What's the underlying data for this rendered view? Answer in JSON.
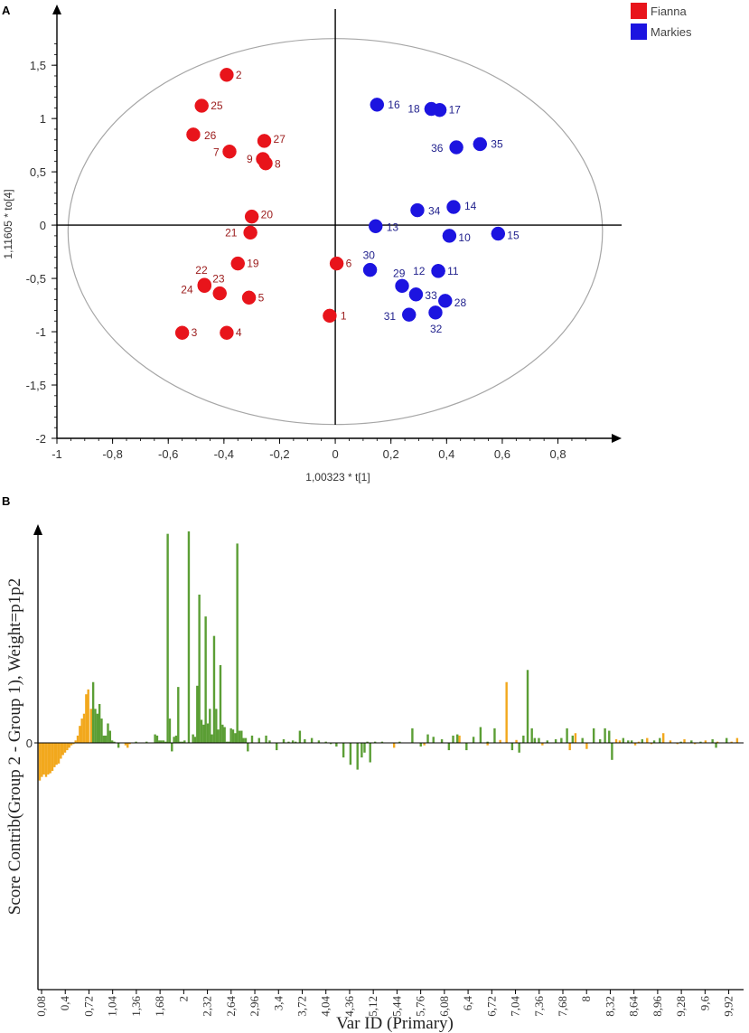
{
  "panels": {
    "a": {
      "label": "A"
    },
    "b": {
      "label": "B"
    }
  },
  "colors": {
    "fianna": "#e8141b",
    "markies": "#1c14e0",
    "fianna_label": "#9b1b1b",
    "markies_label": "#1f1f8c",
    "positive_bar": "#5b9e35",
    "negative_bar": "#f2a81d",
    "axis": "#000000",
    "ellipse": "#a6a6a6"
  },
  "chart_data": [
    {
      "type": "scatter",
      "title": "",
      "xlabel": "1,00323 * t[1]",
      "ylabel": "1,11605 * to[4]",
      "xlim": [
        -1,
        0.98
      ],
      "ylim": [
        -2,
        1.9
      ],
      "x_ticks": [
        {
          "value": -1,
          "label": "-1"
        },
        {
          "value": -0.8,
          "label": "-0,8"
        },
        {
          "value": -0.6,
          "label": "-0,6"
        },
        {
          "value": -0.4,
          "label": "-0,4"
        },
        {
          "value": -0.2,
          "label": "-0,2"
        },
        {
          "value": 0,
          "label": "0"
        },
        {
          "value": 0.2,
          "label": "0,2"
        },
        {
          "value": 0.4,
          "label": "0,4"
        },
        {
          "value": 0.6,
          "label": "0,6"
        },
        {
          "value": 0.8,
          "label": "0,8"
        }
      ],
      "y_ticks": [
        {
          "value": 1.5,
          "label": "1,5"
        },
        {
          "value": 1,
          "label": "1"
        },
        {
          "value": 0.5,
          "label": "0,5"
        },
        {
          "value": 0,
          "label": "0"
        },
        {
          "value": -0.5,
          "label": "-0,5"
        },
        {
          "value": -1,
          "label": "-1"
        },
        {
          "value": -1.5,
          "label": "-1,5"
        },
        {
          "value": -2,
          "label": "-2"
        }
      ],
      "ellipse": {
        "cx": 0,
        "cy": -0.06,
        "rx": 0.96,
        "ry": 1.81
      },
      "legend": {
        "position": "top-right",
        "entries": [
          {
            "name": "Fianna",
            "color": "#e8141b"
          },
          {
            "name": "Markies",
            "color": "#1c14e0"
          }
        ]
      },
      "series": [
        {
          "name": "Fianna",
          "points": [
            {
              "id": "1",
              "x": -0.02,
              "y": -0.85,
              "dx": 12,
              "dy": 4
            },
            {
              "id": "2",
              "x": -0.39,
              "y": 1.41,
              "dx": 10,
              "dy": 4
            },
            {
              "id": "3",
              "x": -0.55,
              "y": -1.01,
              "dx": 10,
              "dy": 4
            },
            {
              "id": "4",
              "x": -0.39,
              "y": -1.01,
              "dx": 10,
              "dy": 4
            },
            {
              "id": "5",
              "x": -0.31,
              "y": -0.68,
              "dx": 10,
              "dy": 4
            },
            {
              "id": "6",
              "x": 0.005,
              "y": -0.36,
              "dx": 10,
              "dy": 4
            },
            {
              "id": "7",
              "x": -0.38,
              "y": 0.69,
              "dx": -18,
              "dy": 5
            },
            {
              "id": "8",
              "x": -0.25,
              "y": 0.58,
              "dx": 10,
              "dy": 5
            },
            {
              "id": "9",
              "x": -0.26,
              "y": 0.62,
              "dx": -18,
              "dy": 4
            },
            {
              "id": "19",
              "x": -0.35,
              "y": -0.36,
              "dx": 10,
              "dy": 4
            },
            {
              "id": "20",
              "x": -0.3,
              "y": 0.08,
              "dx": 10,
              "dy": 2
            },
            {
              "id": "21",
              "x": -0.305,
              "y": -0.07,
              "dx": -28,
              "dy": 4
            },
            {
              "id": "22",
              "x": -0.47,
              "y": -0.56,
              "dx": -10,
              "dy": -12
            },
            {
              "id": "23",
              "x": -0.415,
              "y": -0.64,
              "dx": -8,
              "dy": -12
            },
            {
              "id": "24",
              "x": -0.47,
              "y": -0.57,
              "dx": -26,
              "dy": 8
            },
            {
              "id": "25",
              "x": -0.48,
              "y": 1.12,
              "dx": 10,
              "dy": 4
            },
            {
              "id": "26",
              "x": -0.51,
              "y": 0.85,
              "dx": 12,
              "dy": 5
            },
            {
              "id": "27",
              "x": -0.255,
              "y": 0.79,
              "dx": 10,
              "dy": 2
            }
          ]
        },
        {
          "name": "Markies",
          "points": [
            {
              "id": "10",
              "x": 0.41,
              "y": -0.1,
              "dx": 10,
              "dy": 6
            },
            {
              "id": "11",
              "x": 0.37,
              "y": -0.43,
              "dx": 10,
              "dy": 4
            },
            {
              "id": "12",
              "x": 0.37,
              "y": -0.43,
              "dx": -28,
              "dy": 4
            },
            {
              "id": "13",
              "x": 0.145,
              "y": -0.01,
              "dx": 12,
              "dy": 5
            },
            {
              "id": "14",
              "x": 0.425,
              "y": 0.17,
              "dx": 12,
              "dy": 3
            },
            {
              "id": "15",
              "x": 0.585,
              "y": -0.08,
              "dx": 10,
              "dy": 6
            },
            {
              "id": "16",
              "x": 0.15,
              "y": 1.13,
              "dx": 12,
              "dy": 4
            },
            {
              "id": "17",
              "x": 0.375,
              "y": 1.08,
              "dx": 10,
              "dy": 4
            },
            {
              "id": "18",
              "x": 0.345,
              "y": 1.09,
              "dx": -26,
              "dy": 4
            },
            {
              "id": "28",
              "x": 0.395,
              "y": -0.71,
              "dx": 10,
              "dy": 6
            },
            {
              "id": "29",
              "x": 0.24,
              "y": -0.57,
              "dx": -10,
              "dy": -10
            },
            {
              "id": "30",
              "x": 0.125,
              "y": -0.42,
              "dx": -8,
              "dy": -12
            },
            {
              "id": "31",
              "x": 0.265,
              "y": -0.84,
              "dx": -28,
              "dy": 6
            },
            {
              "id": "32",
              "x": 0.36,
              "y": -0.82,
              "dx": -6,
              "dy": 22
            },
            {
              "id": "33",
              "x": 0.29,
              "y": -0.65,
              "dx": 10,
              "dy": 5
            },
            {
              "id": "34",
              "x": 0.295,
              "y": 0.14,
              "dx": 12,
              "dy": 5
            },
            {
              "id": "35",
              "x": 0.52,
              "y": 0.76,
              "dx": 12,
              "dy": 4
            },
            {
              "id": "36",
              "x": 0.435,
              "y": 0.73,
              "dx": -28,
              "dy": 5
            }
          ]
        }
      ]
    },
    {
      "type": "bar",
      "title": "",
      "xlabel": "Var ID (Primary)",
      "ylabel": "Score Contrib(Group 2 - Group 1), Weight=p1p2",
      "xlim": [
        0.08,
        10.04
      ],
      "ylim": [
        -1,
        1
      ],
      "x_tick_labels": [
        "0,08",
        "0,4",
        "0,72",
        "1,04",
        "1,36",
        "1,68",
        "2",
        "2,32",
        "2,64",
        "2,96",
        "3,4",
        "3,72",
        "4,04",
        "4,36",
        "5,12",
        "5,44",
        "5,76",
        "6,08",
        "6,4",
        "6,72",
        "7,04",
        "7,36",
        "7,68",
        "8",
        "8,32",
        "8,64",
        "8,96",
        "9,28",
        "9,6",
        "9,92"
      ],
      "y_zero_label": "0",
      "series": [
        {
          "name": "negative",
          "color": "#f2a81d",
          "x": [
            0.08,
            0.11,
            0.14,
            0.17,
            0.2,
            0.23,
            0.26,
            0.29,
            0.32,
            0.35,
            0.38,
            0.41,
            0.44,
            0.47,
            0.5,
            0.53,
            0.56,
            0.59,
            0.62,
            0.65,
            0.68,
            0.71,
            0.74,
            0.77,
            0.81,
            1.3,
            1.33,
            1.36,
            5.12,
            5.55,
            6.05,
            6.45,
            6.63,
            6.72,
            6.86,
            7.23,
            7.62,
            7.7,
            7.86,
            8.28,
            8.33,
            8.55,
            8.6,
            8.72,
            8.78,
            8.95,
            9.05,
            9.15,
            9.25,
            9.4,
            9.55,
            9.72,
            9.92,
            10
          ],
          "values": [
            -0.155,
            -0.14,
            -0.13,
            -0.14,
            -0.13,
            -0.125,
            -0.115,
            -0.1,
            -0.09,
            -0.085,
            -0.065,
            -0.05,
            -0.04,
            -0.03,
            -0.02,
            -0.01,
            -0.005,
            0.01,
            0.03,
            0.07,
            0.1,
            0.12,
            0.2,
            0.22,
            0.14,
            -0.01,
            -0.02,
            -0.005,
            -0.02,
            -0.01,
            0.03,
            -0.01,
            0.012,
            0.25,
            0.012,
            -0.01,
            -0.03,
            0.04,
            -0.025,
            0.015,
            0.01,
            -0.01,
            0.005,
            0.02,
            -0.005,
            0.04,
            0.01,
            -0.005,
            0.015,
            -0.005,
            0.01,
            0.005,
            0.005,
            0.02
          ]
        },
        {
          "name": "positive",
          "color": "#5b9e35",
          "x": [
            0.84,
            0.87,
            0.9,
            0.93,
            0.96,
            0.99,
            1.02,
            1.05,
            1.08,
            1.11,
            1.14,
            1.2,
            1.45,
            1.6,
            1.72,
            1.75,
            1.78,
            1.81,
            1.84,
            1.87,
            1.9,
            1.93,
            1.96,
            1.99,
            2.02,
            2.05,
            2.08,
            2.11,
            2.14,
            2.2,
            2.26,
            2.29,
            2.32,
            2.35,
            2.38,
            2.41,
            2.44,
            2.47,
            2.5,
            2.53,
            2.56,
            2.59,
            2.62,
            2.65,
            2.68,
            2.71,
            2.74,
            2.77,
            2.8,
            2.83,
            2.86,
            2.89,
            2.92,
            2.95,
            2.98,
            3.01,
            3.04,
            3.1,
            3.2,
            3.3,
            3.35,
            3.45,
            3.55,
            3.62,
            3.68,
            3.72,
            3.78,
            3.85,
            3.95,
            4.05,
            4.15,
            4.22,
            4.3,
            4.4,
            4.5,
            4.6,
            4.66,
            4.7,
            4.74,
            4.78,
            4.85,
            4.95,
            5.2,
            5.38,
            5.5,
            5.6,
            5.68,
            5.8,
            5.9,
            5.96,
            6.02,
            6.15,
            6.25,
            6.35,
            6.45,
            6.55,
            6.8,
            6.9,
            6.96,
            7.02,
            7.08,
            7.12,
            7.18,
            7.3,
            7.42,
            7.5,
            7.58,
            7.66,
            7.8,
            7.96,
            8.05,
            8.12,
            8.18,
            8.22,
            8.38,
            8.45,
            8.5,
            8.65,
            8.82,
            8.9,
            9.2,
            9.35,
            9.48,
            9.65,
            9.7,
            9.85
          ],
          "values": [
            0.25,
            0.14,
            0.12,
            0.16,
            0.1,
            0.03,
            0.03,
            0.08,
            0.05,
            0.01,
            0.005,
            -0.02,
            0.005,
            0.005,
            0.035,
            0.03,
            0.01,
            0.01,
            0.01,
            0.005,
            0.86,
            0.1,
            -0.035,
            0.025,
            0.03,
            0.23,
            0.005,
            0.005,
            0.01,
            0.87,
            0.035,
            0.025,
            0.235,
            0.61,
            0.095,
            0.075,
            0.52,
            0.08,
            0.14,
            0.035,
            0.44,
            0.14,
            0.055,
            0.32,
            0.075,
            0.065,
            0.005,
            0.005,
            0.06,
            0.055,
            0.04,
            0.82,
            0.05,
            0.05,
            0.02,
            0.02,
            -0.035,
            0.03,
            0.02,
            0.03,
            0.01,
            -0.03,
            0.015,
            0.005,
            0.01,
            0.005,
            0.05,
            0.015,
            0.02,
            0.01,
            0.005,
            -0.005,
            -0.015,
            -0.06,
            -0.09,
            -0.11,
            -0.06,
            -0.04,
            0.005,
            -0.08,
            0.005,
            0.005,
            0.005,
            0.06,
            -0.015,
            0.035,
            0.025,
            0.015,
            -0.03,
            0.03,
            0.035,
            -0.03,
            0.025,
            0.065,
            0.005,
            0.06,
            -0.03,
            -0.04,
            0.03,
            0.3,
            0.06,
            0.02,
            0.02,
            0.01,
            0.015,
            0.02,
            0.06,
            0.03,
            0.02,
            0.06,
            0.015,
            0.06,
            0.05,
            -0.07,
            0.02,
            0.01,
            0.01,
            0.015,
            0.01,
            0.02,
            0.005,
            0.01,
            0.005,
            0.015,
            -0.02,
            0.02
          ]
        }
      ]
    }
  ]
}
